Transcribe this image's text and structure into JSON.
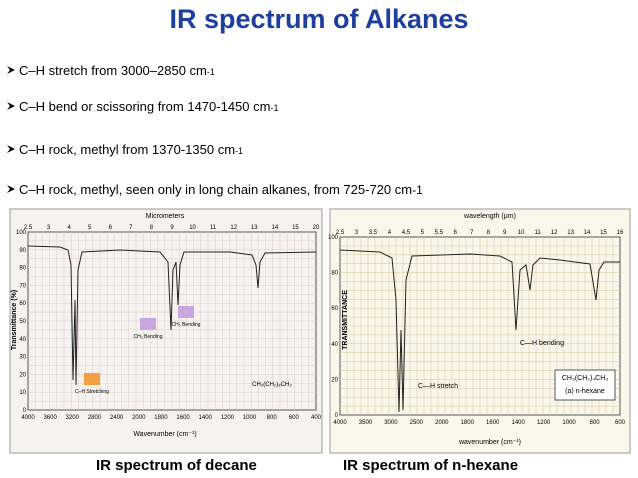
{
  "title": "IR spectrum of Alkanes",
  "bullets": [
    {
      "text": "C–H stretch from 3000–2850 cm",
      "sup": "-1"
    },
    {
      "text": "C–H bend or scissoring from 1470-1450 cm",
      "sup": "-1"
    },
    {
      "text": "C–H rock, methyl from 1370-1350 cm",
      "sup": "-1"
    },
    {
      "text": "C–H rock, methyl, seen only in long chain alkanes, from 725-720 cm",
      "sup": "-1"
    }
  ],
  "figures": [
    {
      "caption": "IR spectrum of decane",
      "top_axis_title": "Micrometers",
      "bottom_axis_title": "Wavenumber (cm⁻¹)",
      "y_axis_title": "Transmittance (%)",
      "top_ticks": [
        "2.5",
        "3",
        "4",
        "5",
        "6",
        "7",
        "8",
        "9",
        "10",
        "11",
        "12",
        "13",
        "14",
        "15",
        "20"
      ],
      "bottom_ticks": [
        "4000",
        "3600",
        "3200",
        "2800",
        "2400",
        "2000",
        "1800",
        "1600",
        "1400",
        "1200",
        "1000",
        "800",
        "600",
        "400"
      ],
      "y_ticks": [
        "100",
        "90",
        "80",
        "70",
        "60",
        "50",
        "40",
        "30",
        "20",
        "10",
        "0"
      ],
      "labels": [
        "C–H Stretching",
        "CH₃ Bending",
        "CH₂ Bending",
        "CH₃(CH₂)₈CH₃"
      ]
    },
    {
      "caption": "IR spectrum of n-hexane",
      "top_axis_title": "wavelength (μm)",
      "bottom_axis_title": "wavenumber (cm⁻¹)",
      "y_axis_title": "TRANSMITTANCE",
      "top_ticks": [
        "2.5",
        "3",
        "3.5",
        "4",
        "4.5",
        "5",
        "5.5",
        "6",
        "7",
        "8",
        "9",
        "10",
        "11",
        "12",
        "13",
        "14",
        "15",
        "16"
      ],
      "bottom_ticks": [
        "4000",
        "3500",
        "3000",
        "2500",
        "2000",
        "1800",
        "1600",
        "1400",
        "1200",
        "1000",
        "800",
        "600"
      ],
      "y_ticks": [
        "100",
        "80",
        "60",
        "40",
        "20",
        "0"
      ],
      "labels": [
        "C—H stretch",
        "C—H bending",
        "CH₃(CH₂)₄CH₃",
        "(a) n-hexane"
      ]
    }
  ]
}
